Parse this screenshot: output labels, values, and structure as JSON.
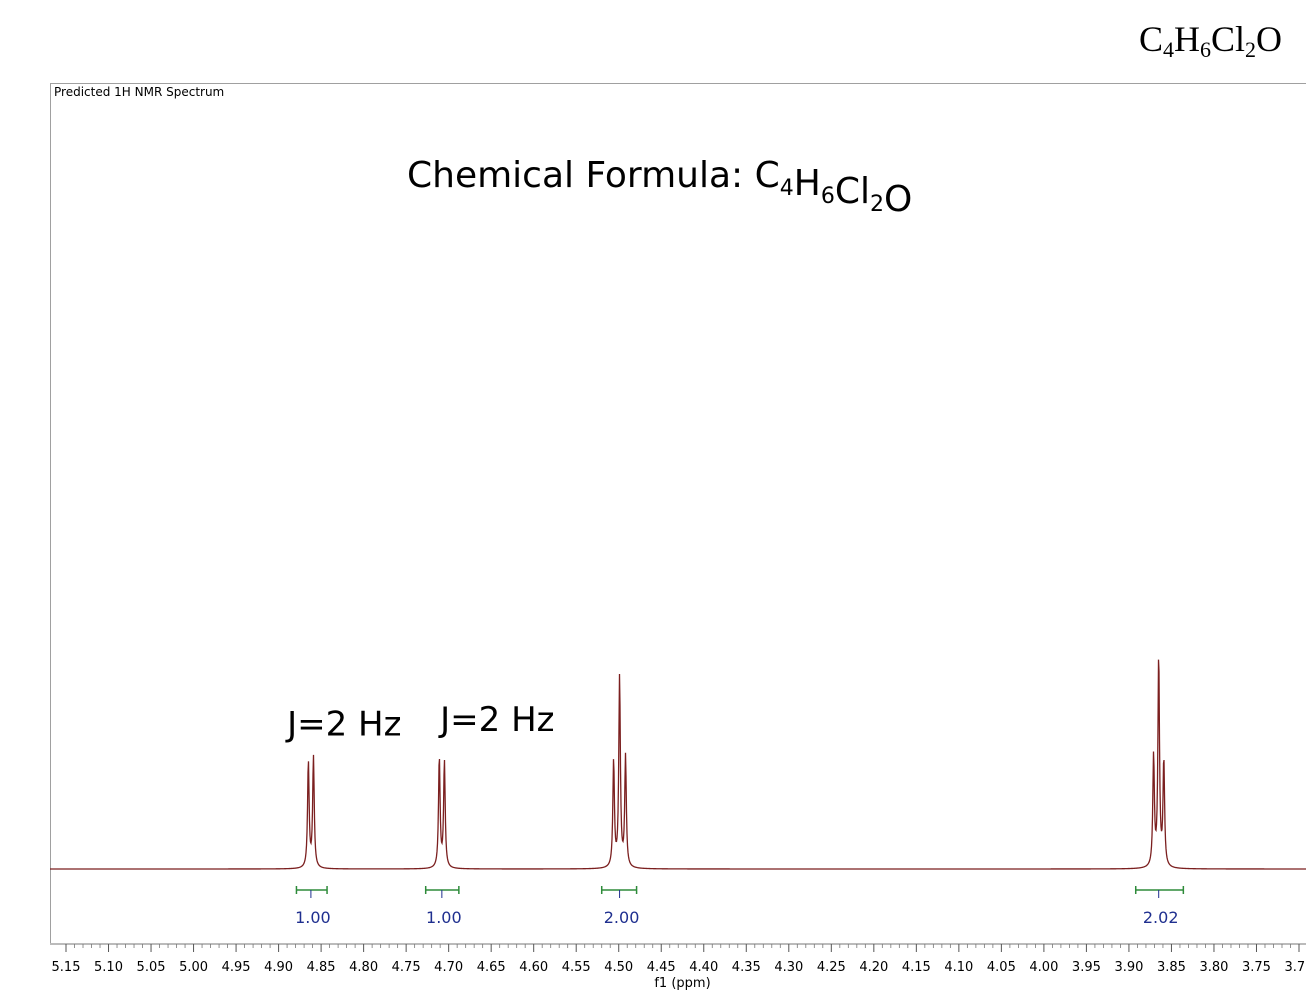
{
  "header": {
    "formula_parts": [
      {
        "text": "C",
        "sub": "4"
      },
      {
        "text": "H",
        "sub": "6"
      },
      {
        "text": "Cl",
        "sub": "2"
      },
      {
        "text": "O",
        "sub": ""
      }
    ]
  },
  "frame_label": "Predicted 1H NMR Spectrum",
  "chart_data": {
    "type": "line",
    "title_prefix": "Chemical Formula: ",
    "title_parts": [
      {
        "text": "C",
        "sub": "4"
      },
      {
        "text": "H",
        "sub": "6"
      },
      {
        "text": "Cl",
        "sub": "2"
      },
      {
        "text": "O",
        "sub": ""
      }
    ],
    "xlabel": "f1 (ppm)",
    "xlim": [
      5.16,
      3.69
    ],
    "reversed_x": true,
    "x_ticks": [
      "5.15",
      "5.10",
      "5.05",
      "5.00",
      "4.95",
      "4.90",
      "4.85",
      "4.80",
      "4.75",
      "4.70",
      "4.65",
      "4.60",
      "4.55",
      "4.50",
      "4.45",
      "4.40",
      "4.35",
      "4.30",
      "4.25",
      "4.20",
      "4.15",
      "4.10",
      "4.05",
      "4.00",
      "3.95",
      "3.90",
      "3.85",
      "3.80",
      "3.75",
      "3.70"
    ],
    "line_color": "#7b1f1f",
    "integration_color": "#2e8b3a",
    "integration_label_color": "#1f2f8f",
    "peaks": [
      {
        "center": 4.862,
        "lines": [
          4.865,
          4.859
        ],
        "heights": [
          0.48,
          0.5
        ]
      },
      {
        "center": 4.708,
        "lines": [
          4.711,
          4.705
        ],
        "heights": [
          0.5,
          0.48
        ]
      },
      {
        "center": 4.499,
        "lines": [
          4.506,
          4.499,
          4.492
        ],
        "heights": [
          0.48,
          0.86,
          0.5
        ]
      },
      {
        "center": 3.865,
        "lines": [
          3.871,
          3.865,
          3.859
        ],
        "heights": [
          0.5,
          0.95,
          0.48
        ]
      }
    ],
    "integrations": [
      {
        "from": 4.879,
        "to": 4.843,
        "center": 4.862,
        "label": "1.00"
      },
      {
        "from": 4.727,
        "to": 4.688,
        "center": 4.708,
        "label": "1.00"
      },
      {
        "from": 4.52,
        "to": 4.479,
        "center": 4.499,
        "label": "2.00"
      },
      {
        "from": 3.892,
        "to": 3.836,
        "center": 3.865,
        "label": "2.02"
      }
    ],
    "annotations": [
      {
        "text": "J=2 Hz",
        "x": 4.89,
        "y": 0.62
      },
      {
        "text": "J=2 Hz",
        "x": 4.71,
        "y": 0.64
      }
    ]
  }
}
